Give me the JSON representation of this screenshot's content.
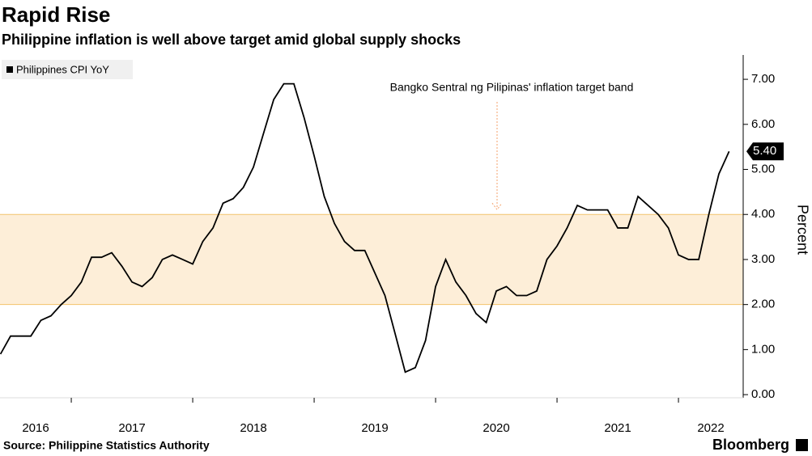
{
  "chart_data": {
    "type": "line",
    "title": "Rapid Rise",
    "subtitle": "Philippine inflation is well above target amid global supply shocks",
    "source": "Source: Philippine Statistics Authority",
    "brand": "Bloomberg",
    "ylabel": "Percent",
    "annotation": "Bangko Sentral ng Pilipinas' inflation target band",
    "target_band": [
      2,
      4
    ],
    "band_color": "#fdeed8",
    "band_edge_color": "#f2c36b",
    "annotation_color": "#f4a26b",
    "x": [
      2016.417,
      2016.5,
      2016.583,
      2016.667,
      2016.75,
      2016.833,
      2016.917,
      2017.0,
      2017.083,
      2017.167,
      2017.25,
      2017.333,
      2017.417,
      2017.5,
      2017.583,
      2017.667,
      2017.75,
      2017.833,
      2017.917,
      2018.0,
      2018.083,
      2018.167,
      2018.25,
      2018.333,
      2018.417,
      2018.5,
      2018.583,
      2018.667,
      2018.75,
      2018.833,
      2018.917,
      2019.0,
      2019.083,
      2019.167,
      2019.25,
      2019.333,
      2019.417,
      2019.5,
      2019.583,
      2019.667,
      2019.75,
      2019.833,
      2019.917,
      2020.0,
      2020.083,
      2020.167,
      2020.25,
      2020.333,
      2020.417,
      2020.5,
      2020.583,
      2020.667,
      2020.75,
      2020.833,
      2020.917,
      2021.0,
      2021.083,
      2021.167,
      2021.25,
      2021.333,
      2021.417,
      2021.5,
      2021.583,
      2021.667,
      2021.75,
      2021.833,
      2021.917,
      2022.0,
      2022.083,
      2022.167,
      2022.25,
      2022.333,
      2022.417
    ],
    "series": [
      {
        "name": "Philippines CPI YoY",
        "color": "#000000",
        "values": [
          0.9,
          1.3,
          1.3,
          1.3,
          1.65,
          1.75,
          2.0,
          2.2,
          2.5,
          3.05,
          3.05,
          3.15,
          2.85,
          2.5,
          2.4,
          2.6,
          3.0,
          3.1,
          3.0,
          2.9,
          3.4,
          3.7,
          4.25,
          4.35,
          4.6,
          5.05,
          5.8,
          6.55,
          6.9,
          6.9,
          6.15,
          5.3,
          4.4,
          3.8,
          3.4,
          3.2,
          3.2,
          2.7,
          2.2,
          1.35,
          0.5,
          0.6,
          1.2,
          2.4,
          3.0,
          2.5,
          2.2,
          1.8,
          1.6,
          2.3,
          2.4,
          2.2,
          2.2,
          2.3,
          3.0,
          3.3,
          3.7,
          4.2,
          4.1,
          4.1,
          4.1,
          3.7,
          3.7,
          4.4,
          4.2,
          4.0,
          3.7,
          3.1,
          3.0,
          3.0,
          4.0,
          4.9,
          5.4
        ],
        "value_labels": [
          null,
          null,
          null,
          null,
          null,
          null,
          null,
          null,
          null,
          null,
          null,
          null,
          null,
          null,
          null,
          null,
          null,
          null,
          null,
          null,
          null,
          null,
          null,
          null,
          null,
          null,
          null,
          null,
          null,
          null,
          null,
          null,
          null,
          null,
          null,
          null,
          null,
          null,
          null,
          null,
          null,
          null,
          null,
          null,
          null,
          null,
          null,
          null,
          null,
          null,
          null,
          null,
          null,
          null,
          null,
          null,
          null,
          null,
          null,
          null,
          null,
          null,
          null,
          null,
          null,
          null,
          null,
          null,
          null,
          null,
          null,
          null,
          "5.40"
        ]
      }
    ],
    "xlim": [
      2016.413,
      2022.533
    ],
    "xticks": [
      {
        "value": 2016,
        "label": "2016"
      },
      {
        "value": 2017,
        "label": "2017"
      },
      {
        "value": 2018,
        "label": "2018"
      },
      {
        "value": 2019,
        "label": "2019"
      },
      {
        "value": 2020,
        "label": "2020"
      },
      {
        "value": 2021,
        "label": "2021"
      },
      {
        "value": 2022,
        "label": "2022"
      }
    ],
    "ylim": [
      -0.07,
      7.54
    ],
    "yticks": [
      {
        "value": 0,
        "label": "0.00"
      },
      {
        "value": 1,
        "label": "1.00"
      },
      {
        "value": 2,
        "label": "2.00"
      },
      {
        "value": 3,
        "label": "3.00"
      },
      {
        "value": 4,
        "label": "4.00"
      },
      {
        "value": 5,
        "label": "5.00"
      },
      {
        "value": 6,
        "label": "6.00"
      },
      {
        "value": 7,
        "label": "7.00"
      }
    ]
  }
}
